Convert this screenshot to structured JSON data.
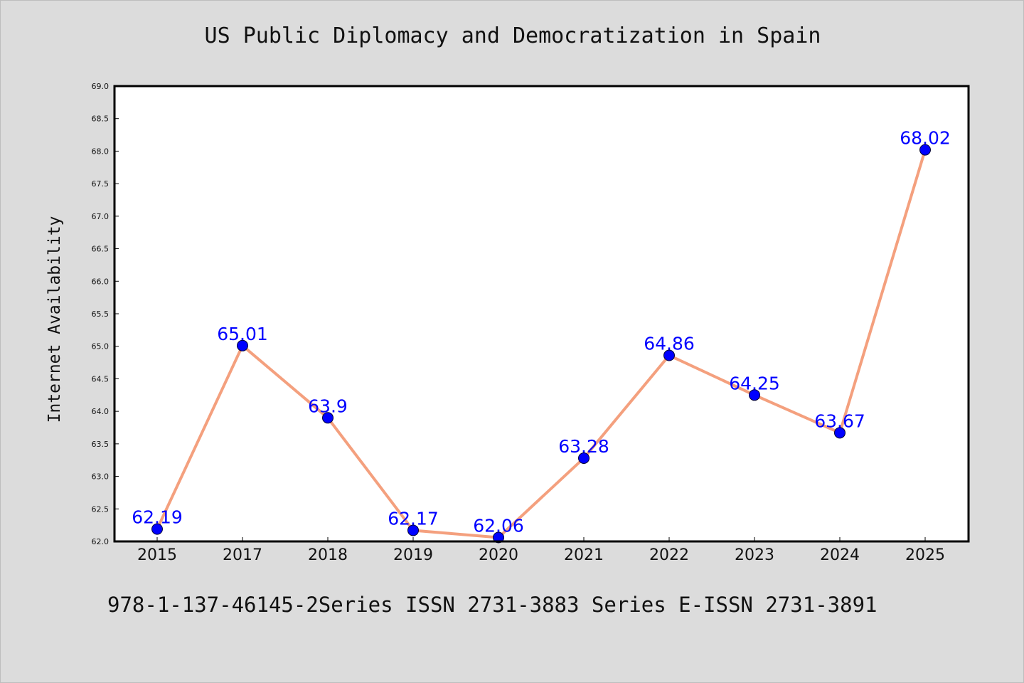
{
  "chart_data": {
    "type": "line",
    "title": "US Public Diplomacy and Democratization in Spain",
    "xlabel": "",
    "ylabel": "Internet Availability",
    "categories": [
      "2015",
      "2017",
      "2018",
      "2019",
      "2020",
      "2021",
      "2022",
      "2023",
      "2024",
      "2025"
    ],
    "values": [
      62.19,
      65.01,
      63.9,
      62.17,
      62.06,
      63.28,
      64.86,
      64.25,
      63.67,
      68.02
    ],
    "data_labels": [
      "62.19",
      "65.01",
      "63.9",
      "62.17",
      "62.06",
      "63.28",
      "64.86",
      "64.25",
      "63.67",
      "68.02"
    ],
    "ylim": [
      62.0,
      69.0
    ],
    "yticks": [
      "62.0",
      "62.5",
      "63.0",
      "63.5",
      "64.0",
      "64.5",
      "65.0",
      "65.5",
      "66.0",
      "66.5",
      "67.0",
      "67.5",
      "68.0",
      "68.5",
      "69.0"
    ],
    "grid": false,
    "line_color": "#f4a07e",
    "marker_color": "#0000ff",
    "label_color": "#0000ff"
  },
  "footer": "978-1-137-46145-2Series ISSN 2731-3883 Series E-ISSN 2731-3891"
}
